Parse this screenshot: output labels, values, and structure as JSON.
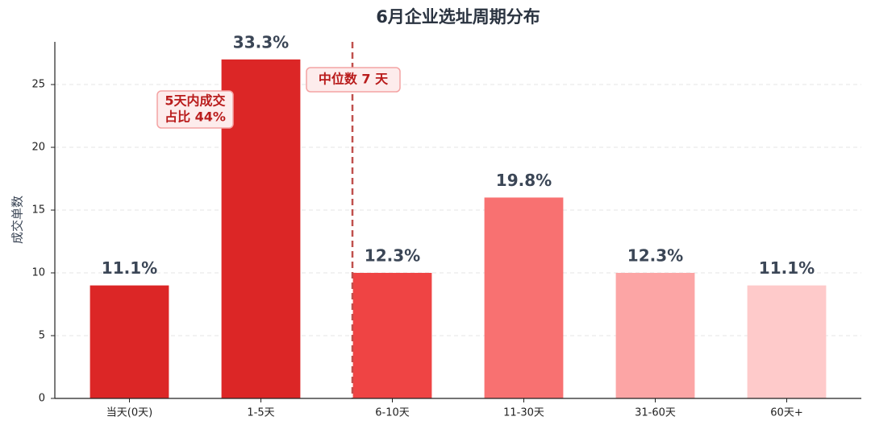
{
  "chart_data": {
    "type": "bar",
    "title": "6月企业选址周期分布",
    "y_label": "成交单数",
    "categories": [
      "当天(0天)",
      "1-5天",
      "6-10天",
      "11-30天",
      "31-60天",
      "60天+"
    ],
    "values": [
      9,
      27,
      10,
      16,
      10,
      9
    ],
    "value_labels": [
      "11.1%",
      "33.3%",
      "12.3%",
      "19.8%",
      "12.3%",
      "11.1%"
    ],
    "colors": [
      "#dc2626",
      "#dc2626",
      "#ef4444",
      "#f87171",
      "#fca5a5",
      "#fecaca"
    ],
    "ylim": [
      0,
      28.4
    ],
    "yticks": [
      0,
      5,
      10,
      15,
      20,
      25
    ],
    "grid": true,
    "annotations": [
      {
        "lines": [
          "5天内成交",
          "占比 44%"
        ]
      },
      {
        "lines": [
          "中位数 7 天"
        ]
      }
    ]
  }
}
